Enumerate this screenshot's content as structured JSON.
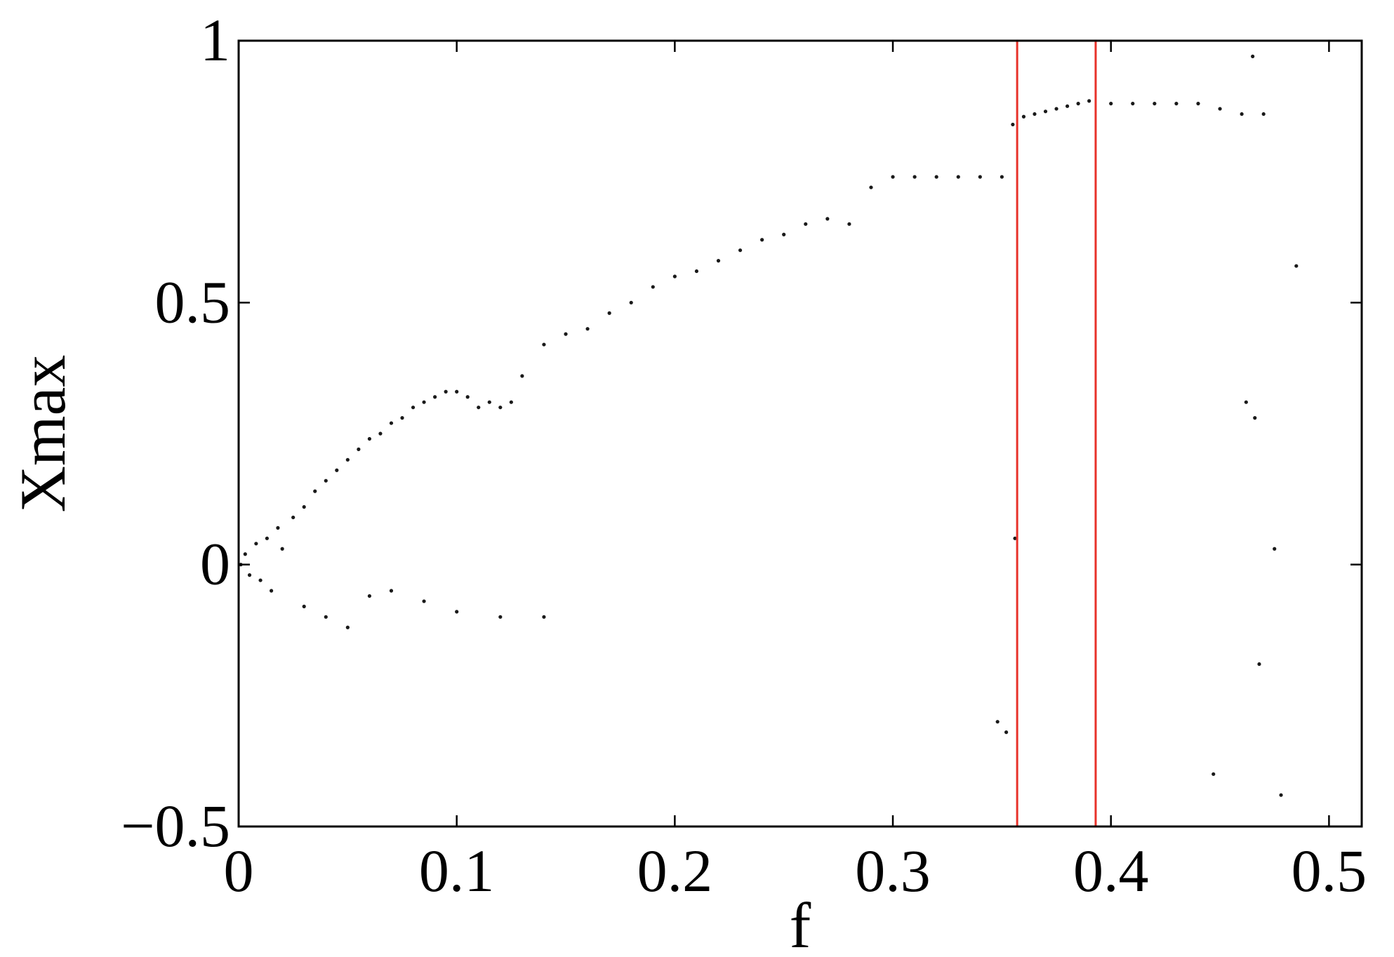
{
  "chart_data": {
    "type": "scatter",
    "title": "",
    "xlabel": "f",
    "ylabel": "Xmax",
    "xlim": [
      0,
      0.515
    ],
    "ylim": [
      -0.5,
      1
    ],
    "xticks": [
      0,
      0.1,
      0.2,
      0.3,
      0.4,
      0.5
    ],
    "xtick_labels": [
      "0",
      "0.1",
      "0.2",
      "0.3",
      "0.4",
      "0.5"
    ],
    "yticks": [
      -0.5,
      0,
      0.5,
      1
    ],
    "ytick_labels": [
      "−0.5",
      "0",
      "0.5",
      "1"
    ],
    "grid": false,
    "point_color": "#1a1a1a",
    "marker_lines": [
      {
        "x": 0.357,
        "color": "#e8322a"
      },
      {
        "x": 0.393,
        "color": "#e8322a"
      }
    ],
    "series": [
      {
        "values_description_free": true,
        "x": [
          0.001,
          0.003,
          0.005,
          0.008,
          0.01,
          0.013,
          0.015,
          0.018,
          0.02,
          0.025,
          0.03,
          0.035,
          0.04,
          0.045,
          0.05,
          0.055,
          0.06,
          0.065,
          0.07,
          0.075,
          0.08,
          0.085,
          0.09,
          0.095,
          0.1,
          0.105,
          0.11,
          0.115,
          0.12,
          0.125,
          0.13,
          0.14,
          0.15,
          0.16,
          0.17,
          0.18,
          0.19,
          0.2,
          0.21,
          0.22,
          0.23,
          0.24,
          0.25,
          0.26,
          0.27,
          0.28,
          0.29,
          0.3,
          0.31,
          0.32,
          0.33,
          0.34,
          0.35,
          0.355,
          0.36,
          0.365,
          0.37,
          0.375,
          0.38,
          0.385,
          0.39,
          0.4,
          0.41,
          0.42,
          0.43,
          0.44,
          0.45,
          0.46,
          0.47,
          0.03,
          0.04,
          0.05,
          0.06,
          0.07,
          0.085,
          0.1,
          0.12,
          0.14,
          0.348,
          0.352,
          0.356,
          0.465,
          0.447,
          0.478,
          0.468,
          0.475,
          0.485,
          0.466,
          0.462
        ],
        "y": [
          0.0,
          0.02,
          -0.02,
          0.04,
          -0.03,
          0.05,
          -0.05,
          0.07,
          0.03,
          0.09,
          0.11,
          0.14,
          0.16,
          0.18,
          0.2,
          0.22,
          0.24,
          0.25,
          0.27,
          0.28,
          0.3,
          0.31,
          0.32,
          0.33,
          0.33,
          0.32,
          0.3,
          0.31,
          0.3,
          0.31,
          0.36,
          0.42,
          0.44,
          0.45,
          0.48,
          0.5,
          0.53,
          0.55,
          0.56,
          0.58,
          0.6,
          0.62,
          0.63,
          0.65,
          0.66,
          0.65,
          0.72,
          0.74,
          0.74,
          0.74,
          0.74,
          0.74,
          0.74,
          0.84,
          0.855,
          0.86,
          0.865,
          0.87,
          0.875,
          0.88,
          0.885,
          0.88,
          0.88,
          0.88,
          0.88,
          0.88,
          0.87,
          0.86,
          0.86,
          -0.08,
          -0.1,
          -0.12,
          -0.06,
          -0.05,
          -0.07,
          -0.09,
          -0.1,
          -0.1,
          -0.3,
          -0.32,
          0.05,
          0.97,
          -0.4,
          -0.44,
          -0.19,
          0.03,
          0.57,
          0.28,
          0.31
        ]
      }
    ]
  }
}
